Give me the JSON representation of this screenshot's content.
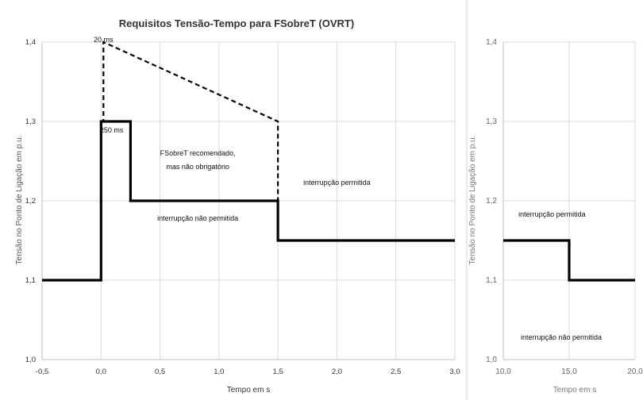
{
  "chart_data": [
    {
      "type": "line",
      "title": "Requisitos Tensão-Tempo para FSobreT (OVRT)",
      "xlabel": "Tempo em s",
      "ylabel": "Tensão no Ponto de Ligação em p.u.",
      "xlim": [
        -0.5,
        3.0
      ],
      "ylim": [
        1.0,
        1.4
      ],
      "x_ticks": [
        "-0,5",
        "0,0",
        "0,5",
        "1,0",
        "1,5",
        "2,0",
        "2,5",
        "3,0"
      ],
      "x_tick_values": [
        -0.5,
        0.0,
        0.5,
        1.0,
        1.5,
        2.0,
        2.5,
        3.0
      ],
      "y_ticks": [
        "1,0",
        "1,1",
        "1,2",
        "1,3",
        "1,4"
      ],
      "y_tick_values": [
        1.0,
        1.1,
        1.2,
        1.3,
        1.4
      ],
      "grid": true,
      "series": [
        {
          "style": "solid",
          "x": [
            -0.5,
            0.0,
            0.0,
            0.25,
            0.25,
            1.5,
            1.5,
            3.0
          ],
          "y": [
            1.1,
            1.1,
            1.3,
            1.3,
            1.2,
            1.2,
            1.15,
            1.15
          ]
        },
        {
          "style": "dashed",
          "x": [
            0.0,
            0.02,
            0.02,
            1.5,
            1.5
          ],
          "y": [
            1.3,
            1.3,
            1.4,
            1.3,
            1.2
          ]
        }
      ],
      "annotations": [
        {
          "text": "20 ms",
          "x": 0.02,
          "y": 1.4
        },
        {
          "text": "250 ms",
          "x": 0.09,
          "y": 1.286
        },
        {
          "text": "FSobreT recomendado,",
          "x": 0.82,
          "y": 1.257
        },
        {
          "text": "mas não obrigatório",
          "x": 0.82,
          "y": 1.24
        },
        {
          "text": "interrupção permitida",
          "x": 2.0,
          "y": 1.22
        },
        {
          "text": "interrupção não permitida",
          "x": 0.82,
          "y": 1.175
        }
      ]
    },
    {
      "type": "line",
      "title": "",
      "xlabel": "Tempo em s",
      "ylabel": "Tensão no Ponto de Ligação em p.u.",
      "xlim": [
        10.0,
        20.0
      ],
      "ylim": [
        1.0,
        1.4
      ],
      "x_ticks": [
        "10,0",
        "15,0",
        "20,0"
      ],
      "x_tick_values": [
        10.0,
        15.0,
        20.0
      ],
      "y_ticks": [
        "1,0",
        "1,1",
        "1,2",
        "1,3",
        "1,4"
      ],
      "y_tick_values": [
        1.0,
        1.1,
        1.2,
        1.3,
        1.4
      ],
      "grid": true,
      "series": [
        {
          "style": "solid",
          "x": [
            10.0,
            15.0,
            15.0,
            20.0
          ],
          "y": [
            1.15,
            1.15,
            1.1,
            1.1
          ]
        }
      ],
      "annotations": [
        {
          "text": "interrupção permitida",
          "x": 13.7,
          "y": 1.18
        },
        {
          "text": "interrupção não permitida",
          "x": 14.4,
          "y": 1.025
        }
      ]
    }
  ]
}
